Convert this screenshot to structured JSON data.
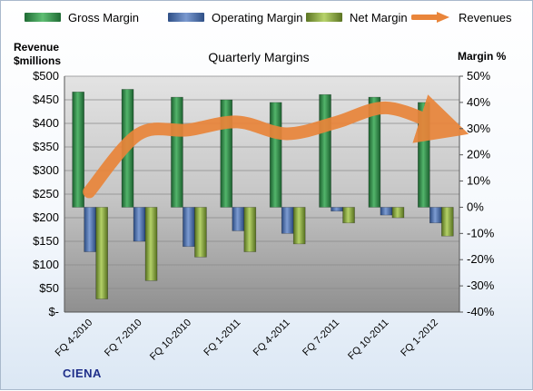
{
  "chart_data": {
    "type": "bar",
    "title": "Quarterly Margins",
    "ylabel_left": "Revenue\n$millions",
    "ylabel_right": "Margin %",
    "categories": [
      "FQ 4-2010",
      "FQ 7-2010",
      "FQ 10-2010",
      "FQ 1-2011",
      "FQ 4-2011",
      "FQ 7-2011",
      "FQ 10-2011",
      "FQ 1-2012"
    ],
    "series": [
      {
        "name": "Gross Margin",
        "axis": "right",
        "color": "#2e8b46",
        "values": [
          44,
          45,
          42,
          41,
          40,
          43,
          42,
          40
        ]
      },
      {
        "name": "Operating Margin",
        "axis": "right",
        "color": "#4f74b8",
        "values": [
          -17,
          -13,
          -15,
          -9,
          -10,
          -1.5,
          -3,
          -6
        ]
      },
      {
        "name": "Net Margin",
        "axis": "right",
        "color": "#8fb044",
        "values": [
          -35,
          -28,
          -19,
          -17,
          -14,
          -6,
          -4,
          -11
        ]
      },
      {
        "name": "Revenues",
        "axis": "left",
        "type": "line",
        "color": "#e9853a",
        "values": [
          255,
          377,
          386,
          403,
          378,
          402,
          433,
          400
        ]
      }
    ],
    "left_axis": {
      "min": 0,
      "max": 500,
      "ticks": [
        "$-",
        "$50",
        "$100",
        "$150",
        "$200",
        "$250",
        "$300",
        "$350",
        "$400",
        "$450",
        "$500"
      ]
    },
    "right_axis": {
      "min": -40,
      "max": 50,
      "ticks": [
        "-40%",
        "-30%",
        "-20%",
        "-10%",
        "0%",
        "10%",
        "20%",
        "30%",
        "40%",
        "50%"
      ]
    },
    "grid": true,
    "legend": "top"
  },
  "legend": {
    "gross": "Gross Margin",
    "operating": "Operating Margin",
    "net": "Net Margin",
    "revenues": "Revenues"
  },
  "logo": "CIENA"
}
